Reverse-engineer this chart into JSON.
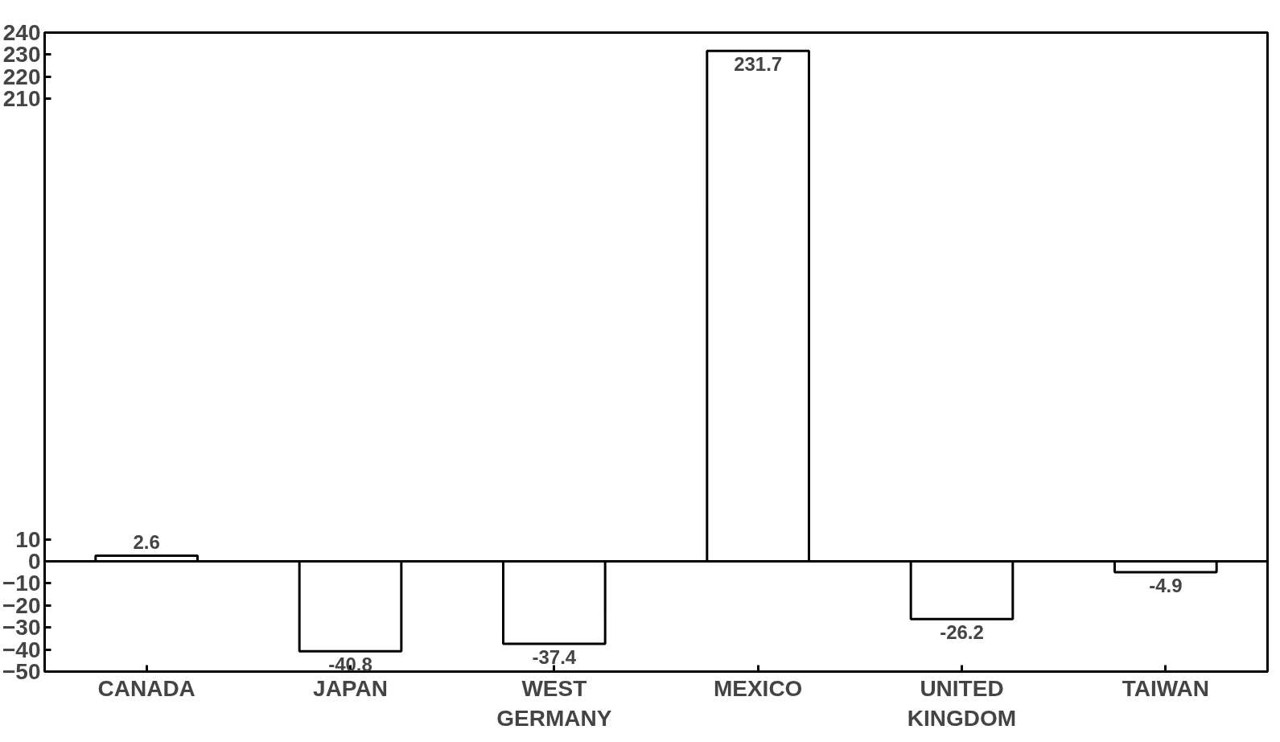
{
  "chart_data": {
    "type": "bar",
    "categories": [
      "CANADA",
      "JAPAN",
      "WEST GERMANY",
      "MEXICO",
      "UNITED KINGDOM",
      "TAIWAN"
    ],
    "values": [
      2.6,
      -40.8,
      -37.4,
      231.7,
      -26.2,
      -4.9
    ],
    "color": "#ffffff",
    "ylim": [
      -50,
      240
    ],
    "yticks": [
      -50,
      -40,
      -30,
      -20,
      -10,
      0,
      10,
      210,
      220,
      230,
      240
    ],
    "data_labels": true
  }
}
